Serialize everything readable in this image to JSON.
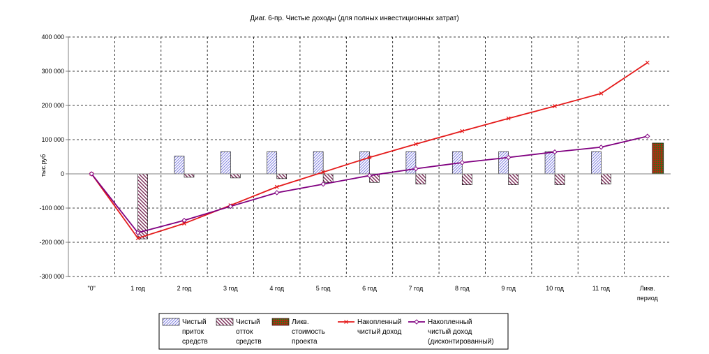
{
  "chart_data": {
    "type": "bar+line",
    "title": "Диаг. 6-пр. Чистые доходы (для полных инвестиционных затрат)",
    "ylabel": "тыс.руб",
    "xlabel": "",
    "ylim": [
      -300000,
      400000
    ],
    "y_ticks": [
      "400 000",
      "300 000",
      "200 000",
      "100 000",
      "0",
      "-100 000",
      "-200 000",
      "-300 000"
    ],
    "y_tick_values": [
      400000,
      300000,
      200000,
      100000,
      0,
      -100000,
      -200000,
      -300000
    ],
    "categories": [
      "\"0\"",
      "1 год",
      "2 год",
      "3 год",
      "4 год",
      "5 год",
      "6 год",
      "7 год",
      "8 год",
      "9 год",
      "10 год",
      "11 год",
      "Ликв. период"
    ],
    "grid": true,
    "legend_position": "bottom",
    "series": [
      {
        "name": "Чистый приток средств",
        "legend_lines": [
          "Чистый",
          "приток",
          "средств"
        ],
        "kind": "bar",
        "pattern": "hatch-inflow",
        "values": [
          0,
          0,
          52000,
          65000,
          65000,
          65000,
          65000,
          65000,
          65000,
          65000,
          65000,
          65000,
          0
        ]
      },
      {
        "name": "Чистый отток средств",
        "legend_lines": [
          "Чистый",
          "отток",
          "средств"
        ],
        "kind": "bar",
        "pattern": "hatch-outflow",
        "values": [
          0,
          -190000,
          -10000,
          -12000,
          -14000,
          -25000,
          -25000,
          -30000,
          -32000,
          -32000,
          -32000,
          -30000,
          0
        ]
      },
      {
        "name": "Ликв. стоимость проекта",
        "legend_lines": [
          "Ликв.",
          "стоимость",
          "проекта"
        ],
        "kind": "bar",
        "pattern": "grid-liq",
        "values": [
          0,
          0,
          0,
          0,
          0,
          0,
          0,
          0,
          0,
          0,
          0,
          0,
          90000
        ]
      },
      {
        "name": "Накопленный чистый доход",
        "legend_lines": [
          "Накопленный",
          "чистый доход"
        ],
        "kind": "line",
        "color": "#e41a1a",
        "marker": "x",
        "values": [
          0,
          -188000,
          -145000,
          -92000,
          -38000,
          5000,
          48000,
          87000,
          125000,
          162000,
          198000,
          235000,
          325000
        ]
      },
      {
        "name": "Накопленный чистый доход (дисконтированный)",
        "legend_lines": [
          "Накопленный",
          "чистый доход",
          "(дисконтированный)"
        ],
        "kind": "line",
        "color": "#800080",
        "marker": "diamond",
        "values": [
          0,
          -172000,
          -136000,
          -95000,
          -55000,
          -30000,
          -5000,
          15000,
          33000,
          48000,
          64000,
          78000,
          110000
        ]
      }
    ],
    "colors": {
      "inflow_fill": "#9999ee",
      "outflow_fill": "#7a2a55",
      "liq_fill": "#1a7a1a",
      "liq_grid": "#e01010",
      "grid": "#000000",
      "axis": "#808080"
    }
  }
}
